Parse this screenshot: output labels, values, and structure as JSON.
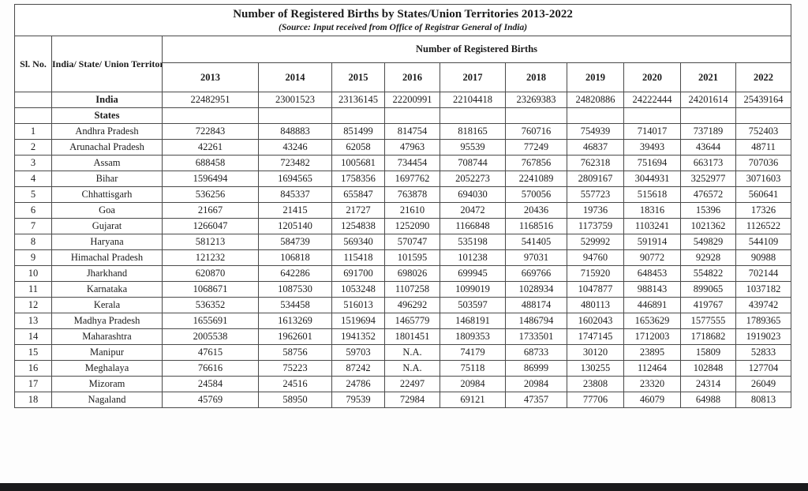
{
  "doc": {
    "title": "Number of Registered Births by States/Union Territories 2013-2022",
    "source": "(Source: Input received from Office of Registrar General of India)"
  },
  "table": {
    "header": {
      "sl_no": "Sl. No.",
      "territory": "India/ State/ Union Territory",
      "group": "Number of Registered Births",
      "years": [
        "2013",
        "2014",
        "2015",
        "2016",
        "2017",
        "2018",
        "2019",
        "2020",
        "2021",
        "2022"
      ]
    },
    "india": {
      "sl": "",
      "name": "India",
      "values": [
        "22482951",
        "23001523",
        "23136145",
        "22200991",
        "22104418",
        "23269383",
        "24820886",
        "24222444",
        "24201614",
        "25439164"
      ]
    },
    "section": {
      "sl": "",
      "name": "States"
    },
    "rows": [
      {
        "sl": "1",
        "name": "Andhra Pradesh",
        "values": [
          "722843",
          "848883",
          "851499",
          "814754",
          "818165",
          "760716",
          "754939",
          "714017",
          "737189",
          "752403"
        ]
      },
      {
        "sl": "2",
        "name": "Arunachal Pradesh",
        "values": [
          "42261",
          "43246",
          "62058",
          "47963",
          "95539",
          "77249",
          "46837",
          "39493",
          "43644",
          "48711"
        ]
      },
      {
        "sl": "3",
        "name": "Assam",
        "values": [
          "688458",
          "723482",
          "1005681",
          "734454",
          "708744",
          "767856",
          "762318",
          "751694",
          "663173",
          "707036"
        ]
      },
      {
        "sl": "4",
        "name": "Bihar",
        "values": [
          "1596494",
          "1694565",
          "1758356",
          "1697762",
          "2052273",
          "2241089",
          "2809167",
          "3044931",
          "3252977",
          "3071603"
        ]
      },
      {
        "sl": "5",
        "name": "Chhattisgarh",
        "values": [
          "536256",
          "845337",
          "655847",
          "763878",
          "694030",
          "570056",
          "557723",
          "515618",
          "476572",
          "560641"
        ]
      },
      {
        "sl": "6",
        "name": "Goa",
        "values": [
          "21667",
          "21415",
          "21727",
          "21610",
          "20472",
          "20436",
          "19736",
          "18316",
          "15396",
          "17326"
        ]
      },
      {
        "sl": "7",
        "name": "Gujarat",
        "values": [
          "1266047",
          "1205140",
          "1254838",
          "1252090",
          "1166848",
          "1168516",
          "1173759",
          "1103241",
          "1021362",
          "1126522"
        ]
      },
      {
        "sl": "8",
        "name": "Haryana",
        "values": [
          "581213",
          "584739",
          "569340",
          "570747",
          "535198",
          "541405",
          "529992",
          "591914",
          "549829",
          "544109"
        ]
      },
      {
        "sl": "9",
        "name": "Himachal Pradesh",
        "values": [
          "121232",
          "106818",
          "115418",
          "101595",
          "101238",
          "97031",
          "94760",
          "90772",
          "92928",
          "90988"
        ]
      },
      {
        "sl": "10",
        "name": "Jharkhand",
        "values": [
          "620870",
          "642286",
          "691700",
          "698026",
          "699945",
          "669766",
          "715920",
          "648453",
          "554822",
          "702144"
        ]
      },
      {
        "sl": "11",
        "name": "Karnataka",
        "values": [
          "1068671",
          "1087530",
          "1053248",
          "1107258",
          "1099019",
          "1028934",
          "1047877",
          "988143",
          "899065",
          "1037182"
        ]
      },
      {
        "sl": "12",
        "name": "Kerala",
        "values": [
          "536352",
          "534458",
          "516013",
          "496292",
          "503597",
          "488174",
          "480113",
          "446891",
          "419767",
          "439742"
        ]
      },
      {
        "sl": "13",
        "name": "Madhya Pradesh",
        "values": [
          "1655691",
          "1613269",
          "1519694",
          "1465779",
          "1468191",
          "1486794",
          "1602043",
          "1653629",
          "1577555",
          "1789365"
        ]
      },
      {
        "sl": "14",
        "name": "Maharashtra",
        "values": [
          "2005538",
          "1962601",
          "1941352",
          "1801451",
          "1809353",
          "1733501",
          "1747145",
          "1712003",
          "1718682",
          "1919023"
        ]
      },
      {
        "sl": "15",
        "name": "Manipur",
        "values": [
          "47615",
          "58756",
          "59703",
          "N.A.",
          "74179",
          "68733",
          "30120",
          "23895",
          "15809",
          "52833"
        ]
      },
      {
        "sl": "16",
        "name": "Meghalaya",
        "values": [
          "76616",
          "75223",
          "87242",
          "N.A.",
          "75118",
          "86999",
          "130255",
          "112464",
          "102848",
          "127704"
        ]
      },
      {
        "sl": "17",
        "name": "Mizoram",
        "values": [
          "24584",
          "24516",
          "24786",
          "22497",
          "20984",
          "20984",
          "23808",
          "23320",
          "24314",
          "26049"
        ]
      },
      {
        "sl": "18",
        "name": "Nagaland",
        "values": [
          "45769",
          "58950",
          "79539",
          "72984",
          "69121",
          "47357",
          "77706",
          "46079",
          "64988",
          "80813"
        ]
      }
    ]
  },
  "colors": {
    "background": "#fdfdfd",
    "border": "#4a4a4a",
    "text": "#1c1c1c",
    "bottom_bar": "#1a1a1c"
  }
}
